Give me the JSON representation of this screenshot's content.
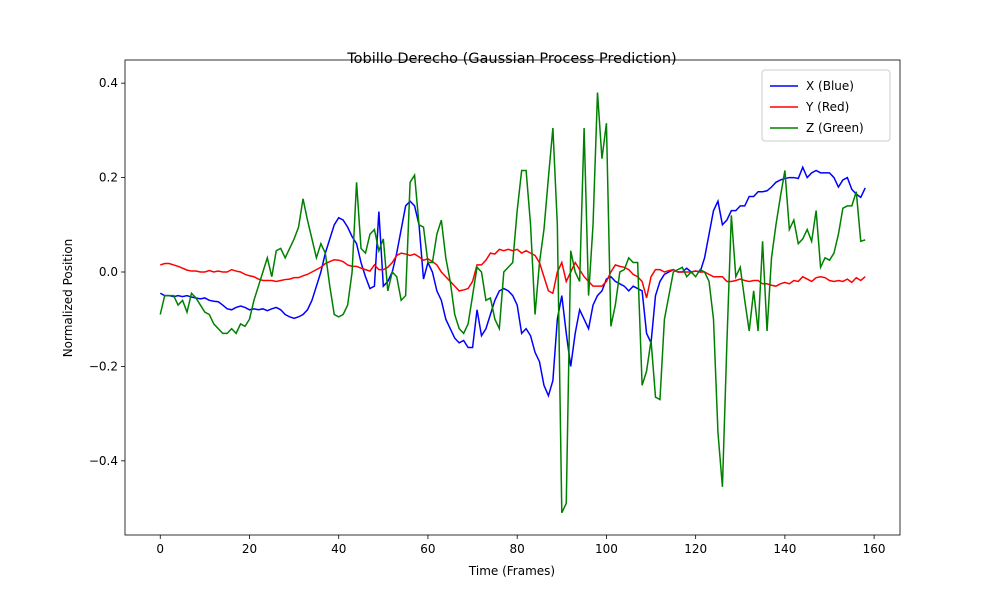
{
  "chart_data": {
    "type": "line",
    "title": "Tobillo Derecho (Gaussian Process Prediction)",
    "x_label": "Time (Frames)",
    "y_label": "Normalized Position",
    "x": [
      0,
      1,
      2,
      3,
      4,
      5,
      6,
      7,
      8,
      9,
      10,
      11,
      12,
      13,
      14,
      15,
      16,
      17,
      18,
      19,
      20,
      21,
      22,
      23,
      24,
      25,
      26,
      27,
      28,
      29,
      30,
      31,
      32,
      33,
      34,
      35,
      36,
      37,
      38,
      39,
      40,
      41,
      42,
      43,
      44,
      45,
      46,
      47,
      48,
      49,
      50,
      51,
      52,
      53,
      54,
      55,
      56,
      57,
      58,
      59,
      60,
      61,
      62,
      63,
      64,
      65,
      66,
      67,
      68,
      69,
      70,
      71,
      72,
      73,
      74,
      75,
      76,
      77,
      78,
      79,
      80,
      81,
      82,
      83,
      84,
      85,
      86,
      87,
      88,
      89,
      90,
      91,
      92,
      93,
      94,
      95,
      96,
      97,
      98,
      99,
      100,
      101,
      102,
      103,
      104,
      105,
      106,
      107,
      108,
      109,
      110,
      111,
      112,
      113,
      114,
      115,
      116,
      117,
      118,
      119,
      120,
      121,
      122,
      123,
      124,
      125,
      126,
      127,
      128,
      129,
      130,
      131,
      132,
      133,
      134,
      135,
      136,
      137,
      138,
      139,
      140,
      141,
      142,
      143,
      144,
      145,
      146,
      147,
      148,
      149,
      150,
      151,
      152,
      153,
      154,
      155,
      156,
      157,
      158
    ],
    "series": [
      {
        "name": "X (Blue)",
        "color": "#0000ff",
        "values": [
          -0.045,
          -0.05,
          -0.05,
          -0.052,
          -0.05,
          -0.052,
          -0.05,
          -0.053,
          -0.055,
          -0.057,
          -0.055,
          -0.06,
          -0.062,
          -0.063,
          -0.07,
          -0.078,
          -0.08,
          -0.075,
          -0.072,
          -0.075,
          -0.08,
          -0.078,
          -0.08,
          -0.078,
          -0.082,
          -0.078,
          -0.075,
          -0.08,
          -0.09,
          -0.095,
          -0.098,
          -0.095,
          -0.09,
          -0.08,
          -0.06,
          -0.03,
          0.0,
          0.04,
          0.07,
          0.1,
          0.115,
          0.11,
          0.095,
          0.075,
          0.06,
          0.02,
          -0.01,
          -0.035,
          -0.03,
          0.128,
          -0.03,
          -0.02,
          0.0,
          0.04,
          0.09,
          0.14,
          0.15,
          0.14,
          0.1,
          -0.015,
          0.02,
          0.0,
          -0.04,
          -0.06,
          -0.1,
          -0.12,
          -0.14,
          -0.15,
          -0.145,
          -0.16,
          -0.16,
          -0.08,
          -0.135,
          -0.12,
          -0.09,
          -0.06,
          -0.04,
          -0.035,
          -0.04,
          -0.05,
          -0.07,
          -0.13,
          -0.12,
          -0.135,
          -0.17,
          -0.19,
          -0.24,
          -0.262,
          -0.23,
          -0.1,
          -0.05,
          -0.13,
          -0.2,
          -0.13,
          -0.08,
          -0.1,
          -0.12,
          -0.07,
          -0.05,
          -0.04,
          -0.015,
          -0.01,
          -0.02,
          -0.025,
          -0.03,
          -0.04,
          -0.03,
          -0.035,
          -0.04,
          -0.13,
          -0.15,
          -0.05,
          -0.02,
          -0.005,
          0.0,
          0.005,
          0.0,
          0.0,
          0.008,
          0.0,
          0.002,
          0.0,
          0.03,
          0.08,
          0.13,
          0.15,
          0.1,
          0.11,
          0.13,
          0.13,
          0.14,
          0.14,
          0.16,
          0.16,
          0.17,
          0.17,
          0.172,
          0.18,
          0.19,
          0.195,
          0.198,
          0.2,
          0.2,
          0.198,
          0.222,
          0.2,
          0.21,
          0.215,
          0.21,
          0.21,
          0.21,
          0.2,
          0.18,
          0.195,
          0.2,
          0.175,
          0.165,
          0.158,
          0.178
        ]
      },
      {
        "name": "Y (Red)",
        "color": "#ff0000",
        "values": [
          0.015,
          0.018,
          0.018,
          0.015,
          0.012,
          0.008,
          0.004,
          0.002,
          0.002,
          0.0,
          0.0,
          0.003,
          0.0,
          0.002,
          0.0,
          0.0,
          0.005,
          0.002,
          0.0,
          -0.005,
          -0.008,
          -0.01,
          -0.015,
          -0.018,
          -0.018,
          -0.018,
          -0.02,
          -0.018,
          -0.016,
          -0.015,
          -0.012,
          -0.012,
          -0.008,
          -0.005,
          0.0,
          0.005,
          0.01,
          0.018,
          0.022,
          0.026,
          0.025,
          0.022,
          0.015,
          0.012,
          0.012,
          0.008,
          0.005,
          0.002,
          0.015,
          0.005,
          0.005,
          0.01,
          0.02,
          0.035,
          0.04,
          0.038,
          0.035,
          0.038,
          0.032,
          0.025,
          0.028,
          0.022,
          0.015,
          0.0,
          -0.01,
          -0.02,
          -0.03,
          -0.04,
          -0.038,
          -0.035,
          -0.02,
          0.015,
          0.015,
          0.025,
          0.04,
          0.038,
          0.048,
          0.045,
          0.048,
          0.045,
          0.048,
          0.04,
          0.045,
          0.04,
          0.035,
          0.02,
          -0.01,
          -0.04,
          -0.045,
          0.0,
          0.02,
          -0.02,
          0.0,
          0.02,
          0.005,
          -0.01,
          -0.02,
          -0.03,
          -0.03,
          -0.03,
          -0.02,
          0.0,
          0.015,
          0.012,
          0.01,
          0.005,
          -0.005,
          -0.01,
          -0.02,
          -0.055,
          -0.01,
          0.005,
          0.005,
          0.0,
          0.003,
          0.005,
          0.0,
          0.0,
          0.0,
          0.0,
          0.002,
          0.0,
          0.0,
          -0.005,
          -0.01,
          -0.01,
          -0.01,
          -0.02,
          -0.02,
          -0.018,
          -0.015,
          -0.018,
          -0.02,
          -0.018,
          -0.018,
          -0.025,
          -0.025,
          -0.028,
          -0.03,
          -0.025,
          -0.022,
          -0.025,
          -0.018,
          -0.02,
          -0.01,
          -0.015,
          -0.02,
          -0.012,
          -0.01,
          -0.012,
          -0.018,
          -0.02,
          -0.018,
          -0.02,
          -0.015,
          -0.022,
          -0.012,
          -0.018,
          -0.01
        ]
      },
      {
        "name": "Z (Green)",
        "color": "#008000",
        "values": [
          -0.09,
          -0.05,
          -0.05,
          -0.05,
          -0.07,
          -0.06,
          -0.085,
          -0.045,
          -0.055,
          -0.07,
          -0.085,
          -0.09,
          -0.11,
          -0.12,
          -0.13,
          -0.13,
          -0.12,
          -0.13,
          -0.11,
          -0.115,
          -0.1,
          -0.06,
          -0.03,
          0.0,
          0.03,
          -0.01,
          0.045,
          0.05,
          0.03,
          0.05,
          0.07,
          0.095,
          0.155,
          0.11,
          0.07,
          0.03,
          0.06,
          0.04,
          -0.03,
          -0.09,
          -0.095,
          -0.09,
          -0.07,
          0.0,
          0.19,
          0.05,
          0.04,
          0.08,
          0.09,
          0.045,
          0.07,
          -0.04,
          0.0,
          -0.01,
          -0.06,
          -0.05,
          0.19,
          0.205,
          0.1,
          0.095,
          0.02,
          0.02,
          0.08,
          0.11,
          0.03,
          -0.02,
          -0.09,
          -0.12,
          -0.13,
          -0.11,
          -0.05,
          0.01,
          0.0,
          -0.06,
          -0.055,
          -0.1,
          -0.12,
          0.0,
          0.01,
          0.02,
          0.13,
          0.215,
          0.215,
          0.1,
          -0.09,
          0.02,
          0.09,
          0.2,
          0.305,
          0.1,
          -0.51,
          -0.49,
          0.045,
          0.0,
          -0.02,
          0.305,
          -0.05,
          0.1,
          0.38,
          0.24,
          0.315,
          -0.115,
          -0.07,
          0.0,
          0.005,
          0.03,
          0.02,
          0.02,
          -0.24,
          -0.21,
          -0.145,
          -0.265,
          -0.27,
          -0.1,
          -0.05,
          0.0,
          0.005,
          0.01,
          -0.01,
          0.0,
          -0.01,
          0.005,
          0.0,
          -0.02,
          -0.1,
          -0.34,
          -0.455,
          -0.15,
          0.12,
          -0.01,
          0.01,
          -0.06,
          -0.125,
          -0.04,
          -0.125,
          0.065,
          -0.125,
          0.03,
          0.1,
          0.16,
          0.215,
          0.09,
          0.11,
          0.06,
          0.07,
          0.09,
          0.065,
          0.13,
          0.01,
          0.03,
          0.025,
          0.04,
          0.08,
          0.135,
          0.14,
          0.14,
          0.17,
          0.065,
          0.068
        ]
      }
    ],
    "xlim": [
      -7.9,
      165.8
    ],
    "ylim": [
      -0.557,
      0.449
    ],
    "xticks": [
      0,
      20,
      40,
      60,
      80,
      100,
      120,
      140,
      160
    ],
    "yticks": [
      {
        "value": -0.4,
        "label": "−0.4"
      },
      {
        "value": -0.2,
        "label": "−0.2"
      },
      {
        "value": 0,
        "label": "0.0"
      },
      0.2,
      0.4
    ],
    "legend": "upper right"
  }
}
